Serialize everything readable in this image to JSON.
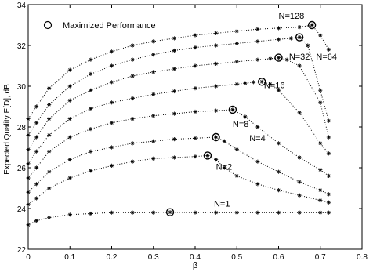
{
  "chart_data": {
    "type": "line",
    "title": "",
    "xlabel": "β",
    "ylabel": "Expected Quality E[D], dB",
    "xlim": [
      0,
      0.8
    ],
    "ylim": [
      22,
      34
    ],
    "xticks": [
      0,
      0.1,
      0.2,
      0.3,
      0.4,
      0.5,
      0.6,
      0.7,
      0.8
    ],
    "xtick_labels": [
      "0",
      "0.1",
      "0.2",
      "0.3",
      "0.4",
      "0.5",
      "0.6",
      "0.7",
      "0.8"
    ],
    "yticks": [
      22,
      24,
      26,
      28,
      30,
      32,
      34
    ],
    "ytick_labels": [
      "22",
      "24",
      "26",
      "28",
      "30",
      "32",
      "34"
    ],
    "grid": false,
    "legend": {
      "placement": "top-left",
      "entries": [
        "Maximized Performance"
      ]
    },
    "series": [
      {
        "name": "N=1",
        "x": [
          0,
          0.02,
          0.05,
          0.1,
          0.15,
          0.2,
          0.25,
          0.3,
          0.34,
          0.4,
          0.45,
          0.5,
          0.55,
          0.6,
          0.65,
          0.7,
          0.72
        ],
        "y": [
          23.2,
          23.4,
          23.55,
          23.7,
          23.75,
          23.8,
          23.8,
          23.8,
          23.82,
          23.8,
          23.8,
          23.8,
          23.8,
          23.8,
          23.8,
          23.8,
          23.8
        ],
        "max": [
          0.34,
          23.82
        ]
      },
      {
        "name": "N=2",
        "x": [
          0,
          0.02,
          0.05,
          0.1,
          0.15,
          0.2,
          0.25,
          0.3,
          0.35,
          0.4,
          0.43,
          0.45,
          0.47,
          0.5,
          0.55,
          0.6,
          0.65,
          0.7,
          0.72
        ],
        "y": [
          24.2,
          24.5,
          25.0,
          25.5,
          25.85,
          26.1,
          26.3,
          26.45,
          26.5,
          26.55,
          26.6,
          26.4,
          26.0,
          25.6,
          25.2,
          24.9,
          24.65,
          24.4,
          24.3
        ],
        "max": [
          0.43,
          26.6
        ]
      },
      {
        "name": "N=4",
        "x": [
          0,
          0.02,
          0.05,
          0.1,
          0.15,
          0.2,
          0.25,
          0.3,
          0.35,
          0.4,
          0.45,
          0.47,
          0.5,
          0.55,
          0.6,
          0.65,
          0.7,
          0.72
        ],
        "y": [
          24.8,
          25.2,
          25.8,
          26.4,
          26.8,
          27.0,
          27.2,
          27.3,
          27.4,
          27.45,
          27.5,
          27.3,
          26.9,
          26.3,
          25.8,
          25.3,
          24.9,
          24.7
        ],
        "max": [
          0.45,
          27.5
        ]
      },
      {
        "name": "N=8",
        "x": [
          0,
          0.02,
          0.05,
          0.1,
          0.15,
          0.2,
          0.25,
          0.3,
          0.35,
          0.4,
          0.45,
          0.49,
          0.52,
          0.55,
          0.6,
          0.65,
          0.7,
          0.72
        ],
        "y": [
          25.5,
          26.0,
          26.8,
          27.5,
          27.9,
          28.2,
          28.4,
          28.55,
          28.65,
          28.75,
          28.8,
          28.85,
          28.5,
          28.0,
          27.2,
          26.5,
          25.9,
          25.6
        ],
        "max": [
          0.49,
          28.85
        ]
      },
      {
        "name": "N=16",
        "x": [
          0,
          0.02,
          0.05,
          0.1,
          0.15,
          0.2,
          0.25,
          0.3,
          0.35,
          0.4,
          0.45,
          0.5,
          0.52,
          0.54,
          0.56,
          0.58,
          0.6,
          0.65,
          0.7,
          0.72
        ],
        "y": [
          26.2,
          26.8,
          27.6,
          28.4,
          28.9,
          29.2,
          29.4,
          29.6,
          29.75,
          29.9,
          30.0,
          30.1,
          30.15,
          30.2,
          30.22,
          30.1,
          29.8,
          28.7,
          27.2,
          26.7
        ],
        "max": [
          0.56,
          30.22
        ]
      },
      {
        "name": "N=32",
        "x": [
          0,
          0.02,
          0.05,
          0.1,
          0.15,
          0.2,
          0.25,
          0.3,
          0.35,
          0.4,
          0.45,
          0.5,
          0.55,
          0.58,
          0.6,
          0.62,
          0.65,
          0.7,
          0.72
        ],
        "y": [
          26.9,
          27.5,
          28.4,
          29.3,
          29.8,
          30.2,
          30.5,
          30.7,
          30.85,
          31.0,
          31.1,
          31.2,
          31.3,
          31.35,
          31.4,
          31.3,
          31.0,
          29.2,
          27.5
        ],
        "max": [
          0.6,
          31.4
        ]
      },
      {
        "name": "N=64",
        "x": [
          0,
          0.02,
          0.05,
          0.1,
          0.15,
          0.2,
          0.25,
          0.3,
          0.35,
          0.4,
          0.45,
          0.5,
          0.55,
          0.6,
          0.63,
          0.65,
          0.67,
          0.7,
          0.72
        ],
        "y": [
          27.6,
          28.2,
          29.1,
          30.0,
          30.6,
          31.0,
          31.3,
          31.55,
          31.75,
          31.9,
          32.0,
          32.1,
          32.2,
          32.3,
          32.35,
          32.4,
          32.0,
          29.8,
          28.3
        ],
        "max": [
          0.65,
          32.4
        ]
      },
      {
        "name": "N=128",
        "x": [
          0,
          0.02,
          0.05,
          0.1,
          0.15,
          0.2,
          0.25,
          0.3,
          0.35,
          0.4,
          0.45,
          0.5,
          0.55,
          0.6,
          0.65,
          0.68,
          0.7,
          0.72
        ],
        "y": [
          28.4,
          29.0,
          29.9,
          30.8,
          31.3,
          31.7,
          32.0,
          32.2,
          32.35,
          32.5,
          32.6,
          32.7,
          32.8,
          32.85,
          32.9,
          33.0,
          32.5,
          31.8
        ],
        "max": [
          0.68,
          33.0
        ]
      }
    ],
    "annotations": [
      {
        "text": "N=1",
        "x": 0.445,
        "y": 24.1
      },
      {
        "text": "N=2",
        "x": 0.45,
        "y": 25.9
      },
      {
        "text": "N=4",
        "x": 0.53,
        "y": 27.3
      },
      {
        "text": "N=8",
        "x": 0.49,
        "y": 28.0
      },
      {
        "text": "N=16",
        "x": 0.565,
        "y": 29.9
      },
      {
        "text": "N=32",
        "x": 0.625,
        "y": 31.3
      },
      {
        "text": "N=64",
        "x": 0.69,
        "y": 31.3
      },
      {
        "text": "N=128",
        "x": 0.6,
        "y": 33.3
      }
    ]
  }
}
